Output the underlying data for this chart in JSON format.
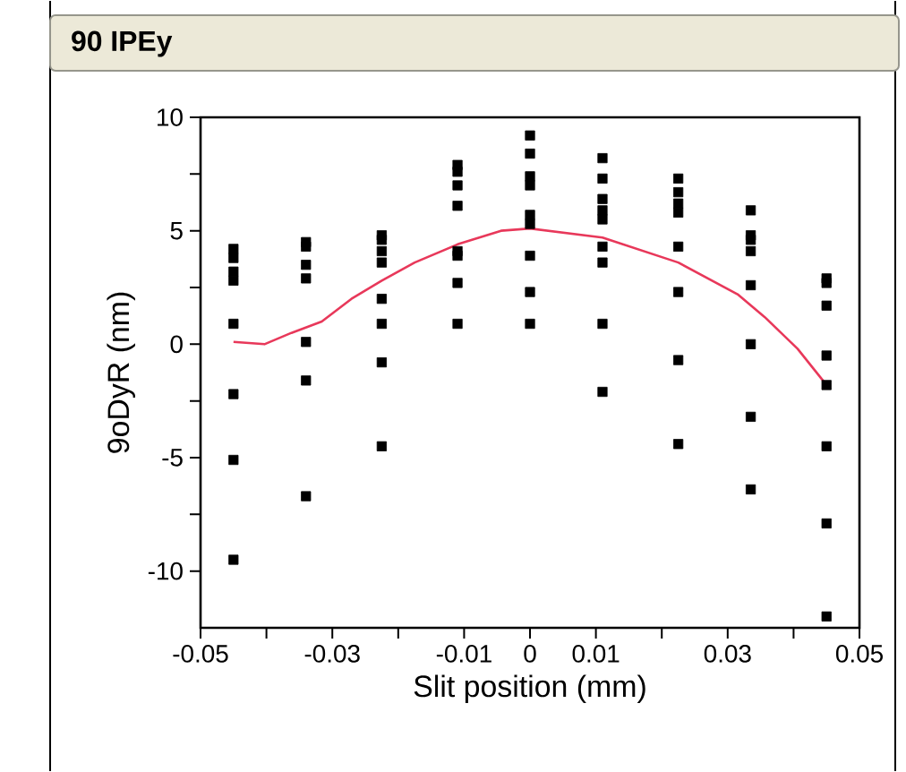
{
  "chart_data": {
    "type": "scatter",
    "title": "90 IPEy",
    "xlabel": "Slit position (mm)",
    "ylabel": "9oDyR (nm)",
    "xlim": [
      -0.05,
      0.05
    ],
    "xticks": [
      -0.05,
      {
        "value": -0.04,
        "label": null
      },
      -0.03,
      {
        "value": -0.02,
        "label": null
      },
      -0.01,
      0,
      0.01,
      {
        "value": 0.02,
        "label": null
      },
      0.03,
      {
        "value": 0.04,
        "label": null
      },
      0.05
    ],
    "ylim": [
      -12.5,
      10
    ],
    "yticks": [
      -10,
      {
        "value": -7.5,
        "label": null
      },
      -5,
      {
        "value": -2.5,
        "label": null
      },
      0,
      {
        "value": 2.5,
        "label": null
      },
      5,
      {
        "value": 7.5,
        "label": null
      },
      10
    ],
    "grid": false,
    "series": [
      {
        "color": "#000000",
        "marker": "square",
        "x": [
          -0.045,
          -0.045,
          -0.045,
          -0.045,
          -0.045,
          -0.045,
          -0.045,
          -0.045,
          -0.034,
          -0.034,
          -0.034,
          -0.034,
          -0.034,
          -0.034,
          -0.034,
          -0.0225,
          -0.0225,
          -0.0225,
          -0.0225,
          -0.0225,
          -0.0225,
          -0.0225,
          -0.0225,
          -0.011,
          -0.011,
          -0.011,
          -0.011,
          -0.011,
          -0.011,
          -0.011,
          -0.011,
          0,
          0,
          0,
          0,
          0,
          0,
          0,
          0,
          0,
          0.011,
          0.011,
          0.011,
          0.011,
          0.011,
          0.011,
          0.011,
          0.011,
          0.011,
          0.0225,
          0.0225,
          0.0225,
          0.0225,
          0.0225,
          0.0225,
          0.0225,
          0.0225,
          0.0335,
          0.0335,
          0.0335,
          0.0335,
          0.0335,
          0.0335,
          0.0335,
          0.0335,
          0.045,
          0.045,
          0.045,
          0.045,
          0.045,
          0.045,
          0.045,
          0.045
        ],
        "values": [
          4.2,
          3.8,
          3.2,
          2.8,
          0.9,
          -2.2,
          -5.1,
          -9.5,
          4.5,
          4.3,
          3.5,
          2.9,
          0.1,
          -1.6,
          -6.7,
          4.8,
          4.6,
          4.1,
          3.6,
          2.0,
          0.9,
          -0.8,
          -4.5,
          7.9,
          7.6,
          7.0,
          6.1,
          4.1,
          3.9,
          2.7,
          0.9,
          9.2,
          8.4,
          7.4,
          7.0,
          5.7,
          5.3,
          3.9,
          2.3,
          0.9,
          8.2,
          7.3,
          6.4,
          5.9,
          5.5,
          4.3,
          3.6,
          0.9,
          -2.1,
          7.3,
          6.7,
          6.2,
          5.8,
          4.3,
          2.3,
          -0.7,
          -4.4,
          5.9,
          4.8,
          4.6,
          4.1,
          2.6,
          0.0,
          -3.2,
          -6.4,
          2.9,
          2.7,
          1.7,
          -0.5,
          -1.8,
          -4.5,
          -7.9,
          -12.0
        ]
      },
      {
        "type": "line",
        "color": "#e8385a",
        "marker": "none",
        "line_style": "solid",
        "x": [
          -0.045,
          -0.0403,
          -0.0362,
          -0.0316,
          -0.0271,
          -0.0225,
          -0.0175,
          -0.011,
          -0.0044,
          0,
          0.011,
          0.0225,
          0.0315,
          0.0356,
          0.0406,
          0.045
        ],
        "values": [
          0.1,
          0.0,
          0.5,
          1.0,
          2.0,
          2.8,
          3.6,
          4.4,
          5.0,
          5.1,
          4.7,
          3.6,
          2.2,
          1.2,
          -0.2,
          -1.8
        ]
      }
    ]
  }
}
